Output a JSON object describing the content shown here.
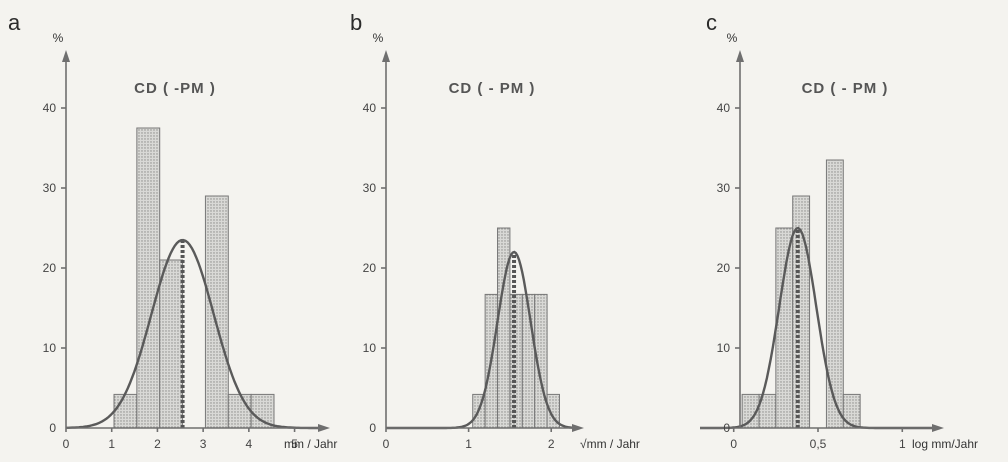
{
  "chart_data": [
    {
      "type": "bar",
      "panel": "a",
      "title": "CD ( -PM )",
      "ylabel": "%",
      "xlabel": "mm / Jahr",
      "xlim": [
        0,
        5.6
      ],
      "ylim": [
        0,
        44
      ],
      "xticks": [
        0,
        1,
        2,
        3,
        4,
        5
      ],
      "yticks": [
        0,
        10,
        20,
        30,
        40
      ],
      "bins": [
        {
          "x0": 1.05,
          "x1": 1.55,
          "value": 4.2
        },
        {
          "x0": 1.55,
          "x1": 2.05,
          "value": 37.5
        },
        {
          "x0": 2.05,
          "x1": 2.55,
          "value": 21
        },
        {
          "x0": 2.55,
          "x1": 3.05,
          "value": 0
        },
        {
          "x0": 3.05,
          "x1": 3.55,
          "value": 29
        },
        {
          "x0": 3.55,
          "x1": 4.05,
          "value": 4.2
        },
        {
          "x0": 4.05,
          "x1": 4.55,
          "value": 4.2
        }
      ],
      "mean": 2.55,
      "curve": {
        "mean": 2.55,
        "sd": 0.68,
        "peak": 23.5
      }
    },
    {
      "type": "bar",
      "panel": "b",
      "title": "CD ( - PM )",
      "ylabel": "%",
      "xlabel": "√mm / Jahr",
      "xlim": [
        0,
        2.3
      ],
      "ylim": [
        0,
        44
      ],
      "xticks": [
        0,
        1,
        2
      ],
      "yticks": [
        0,
        10,
        20,
        30,
        40
      ],
      "bins": [
        {
          "x0": 1.05,
          "x1": 1.2,
          "value": 4.2
        },
        {
          "x0": 1.2,
          "x1": 1.35,
          "value": 16.7
        },
        {
          "x0": 1.35,
          "x1": 1.5,
          "value": 25
        },
        {
          "x0": 1.5,
          "x1": 1.65,
          "value": 16.7
        },
        {
          "x0": 1.65,
          "x1": 1.8,
          "value": 16.7
        },
        {
          "x0": 1.8,
          "x1": 1.95,
          "value": 16.7
        },
        {
          "x0": 1.95,
          "x1": 2.1,
          "value": 4.2
        }
      ],
      "mean": 1.55,
      "curve": {
        "mean": 1.55,
        "sd": 0.2,
        "peak": 22
      }
    },
    {
      "type": "bar",
      "panel": "c",
      "title": "CD ( - PM )",
      "ylabel": "%",
      "xlabel": "log mm/Jahr",
      "xlim": [
        -0.2,
        1.2
      ],
      "ylim": [
        0,
        44
      ],
      "xticks": [
        0,
        0.5,
        1
      ],
      "xticklabels": [
        "0",
        "0,5",
        "1"
      ],
      "yticks": [
        0,
        10,
        20,
        30,
        40
      ],
      "bins": [
        {
          "x0": 0.05,
          "x1": 0.15,
          "value": 4.2
        },
        {
          "x0": 0.15,
          "x1": 0.25,
          "value": 4.2
        },
        {
          "x0": 0.25,
          "x1": 0.35,
          "value": 25
        },
        {
          "x0": 0.35,
          "x1": 0.45,
          "value": 29
        },
        {
          "x0": 0.45,
          "x1": 0.55,
          "value": 0
        },
        {
          "x0": 0.55,
          "x1": 0.65,
          "value": 33.5
        },
        {
          "x0": 0.65,
          "x1": 0.75,
          "value": 4.2
        }
      ],
      "mean": 0.38,
      "curve": {
        "mean": 0.38,
        "sd": 0.11,
        "peak": 25
      }
    }
  ]
}
